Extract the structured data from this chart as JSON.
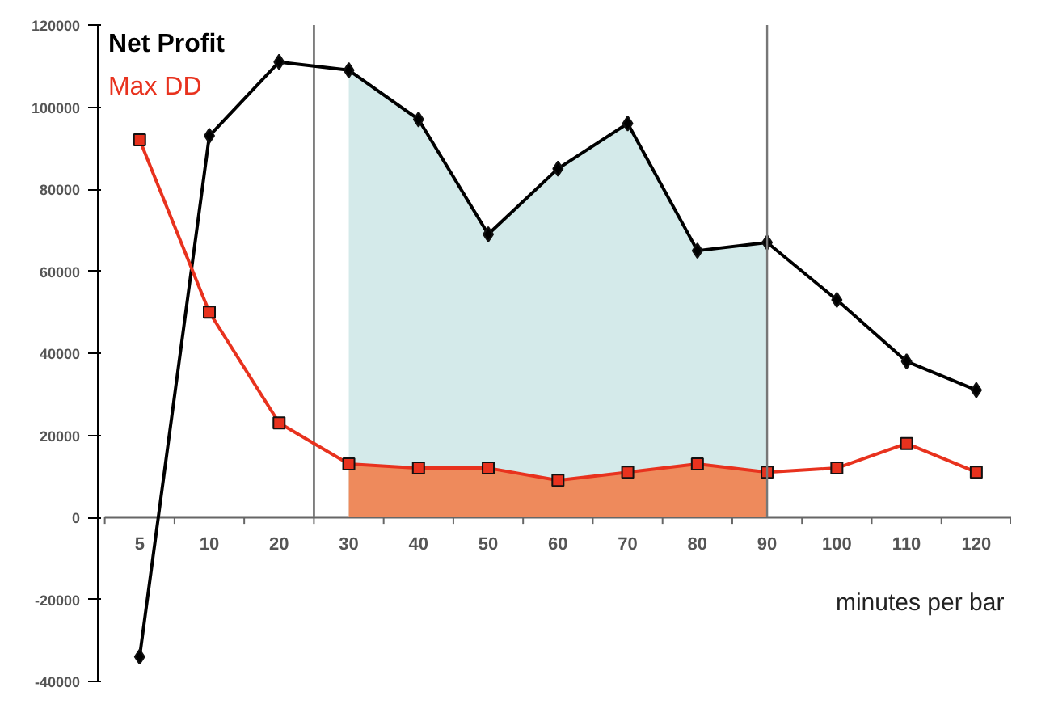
{
  "chart_data": {
    "type": "line",
    "xlabel": "minutes per bar",
    "categories": [
      "5",
      "10",
      "20",
      "30",
      "40",
      "50",
      "60",
      "70",
      "80",
      "90",
      "100",
      "110",
      "120"
    ],
    "series": [
      {
        "name": "Net Profit",
        "color": "#000000",
        "marker": "diamond",
        "values": [
          -34000,
          93000,
          111000,
          109000,
          97000,
          69000,
          85000,
          96000,
          65000,
          67000,
          53000,
          38000,
          31000
        ]
      },
      {
        "name": "Max DD",
        "color": "#e8321e",
        "marker": "square",
        "values": [
          92000,
          50000,
          23000,
          13000,
          12000,
          12000,
          9000,
          11000,
          13000,
          11000,
          12000,
          18000,
          11000
        ]
      },
      {
        "type": "area",
        "color": "#d4eaea",
        "values": [
          null,
          null,
          null,
          109000,
          97000,
          69000,
          85000,
          96000,
          65000,
          67000,
          null,
          null,
          null
        ]
      },
      {
        "type": "area",
        "color": "#ee8a5c",
        "values": [
          null,
          null,
          null,
          13000,
          12000,
          12000,
          9000,
          11000,
          13000,
          11000,
          null,
          null,
          null
        ]
      }
    ],
    "ref_lines": [
      {
        "axis": "x",
        "value": "90",
        "color": "#777777"
      }
    ],
    "ylim": [
      -40000,
      120000
    ],
    "yticks": [
      -40000,
      -20000,
      0,
      20000,
      40000,
      60000,
      80000,
      100000,
      120000
    ],
    "line_style": "solid"
  }
}
